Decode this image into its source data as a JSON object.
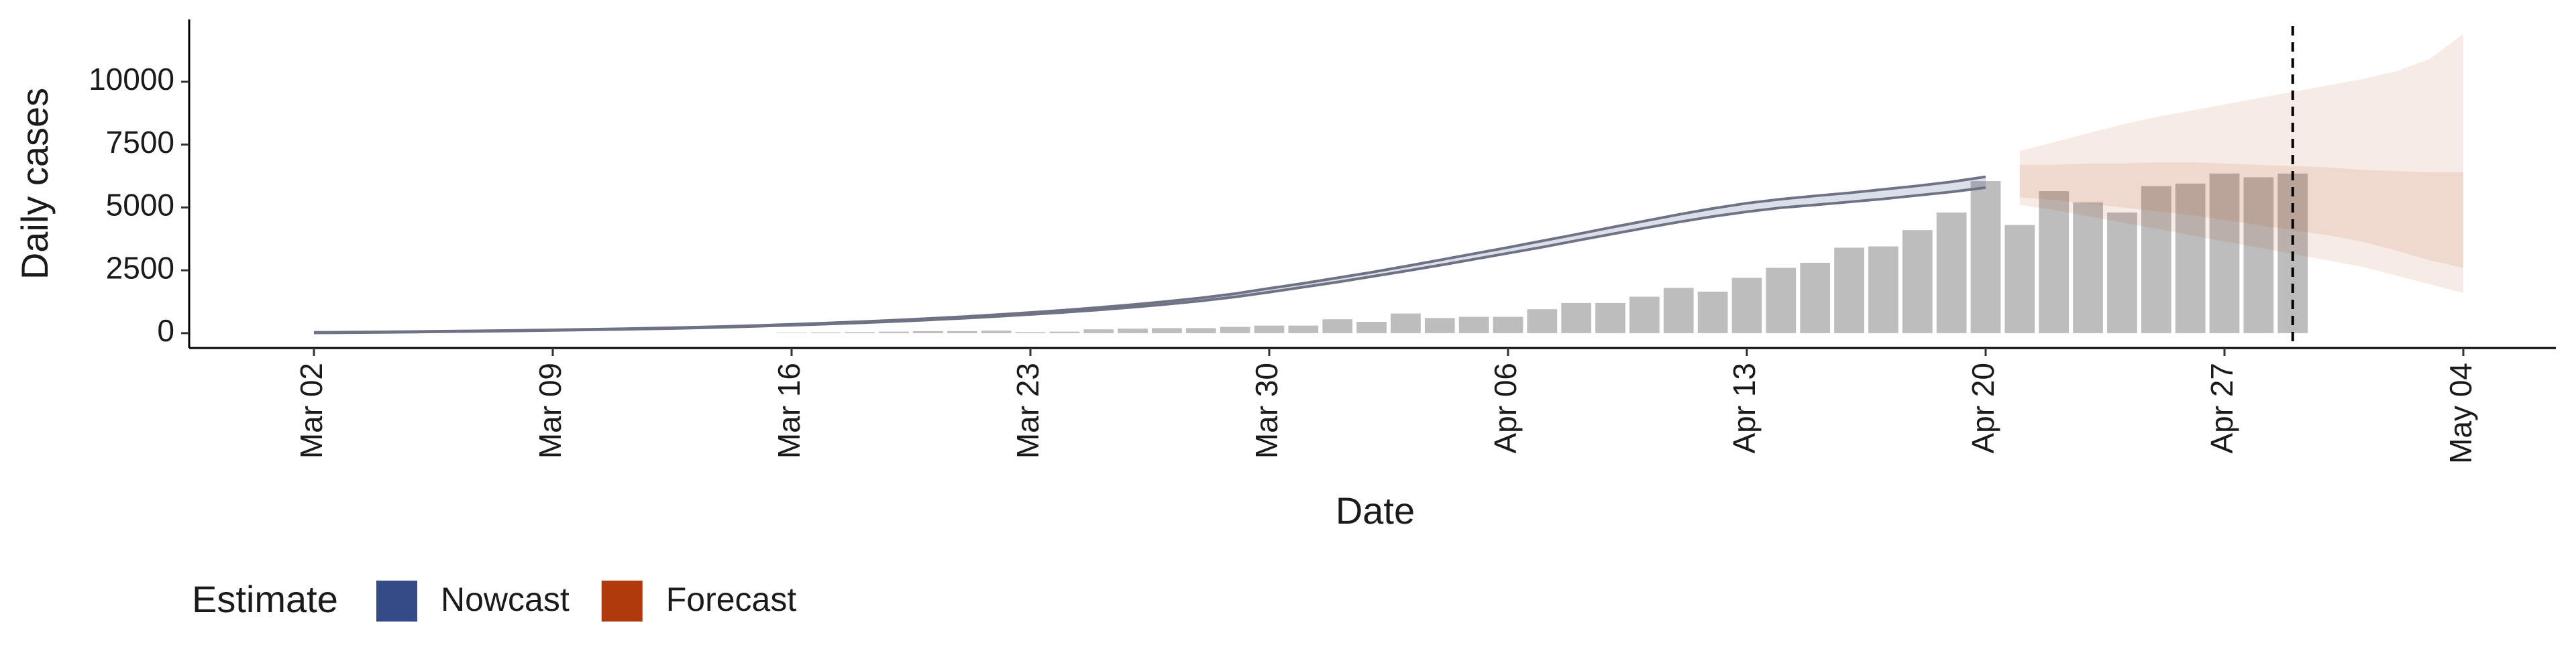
{
  "chart_data": {
    "type": "nowcast",
    "x_label": "Date",
    "y_label": "Daily cases",
    "legend_title": "Estimate",
    "categories": [
      "Mar 02",
      null,
      null,
      null,
      null,
      null,
      null,
      "Mar 09",
      null,
      null,
      null,
      null,
      null,
      null,
      "Mar 16",
      null,
      null,
      null,
      null,
      null,
      null,
      "Mar 23",
      null,
      null,
      null,
      null,
      null,
      null,
      "Mar 30",
      null,
      null,
      null,
      null,
      null,
      null,
      "Apr 06",
      null,
      null,
      null,
      null,
      null,
      null,
      "Apr 13",
      null,
      null,
      null,
      null,
      null,
      null,
      "Apr 20",
      null,
      null,
      null,
      null,
      null,
      null,
      "Apr 27",
      null,
      null,
      null,
      null,
      null,
      null,
      "May 04"
    ],
    "bars": {
      "color": "#bdbdbd",
      "values": [
        null,
        null,
        null,
        null,
        null,
        null,
        null,
        null,
        null,
        null,
        null,
        null,
        null,
        null,
        20,
        30,
        40,
        60,
        80,
        80,
        100,
        40,
        60,
        150,
        180,
        200,
        200,
        250,
        300,
        300,
        550,
        450,
        780,
        600,
        650,
        650,
        950,
        1200,
        1200,
        1450,
        1800,
        1650,
        2200,
        2600,
        2800,
        3400,
        3450,
        4100,
        4800,
        6050,
        4300,
        5650,
        5200,
        4800,
        5850,
        5950,
        6350,
        6200,
        6350,
        null,
        null,
        null,
        null,
        null
      ]
    },
    "series": [
      {
        "name": "Nowcast",
        "color": "#344b87",
        "bands": [
          {
            "lower": [
              10,
              20,
              30,
              45,
              60,
              75,
              90,
              110,
              130,
              150,
              175,
              200,
              235,
              275,
              315,
              360,
              410,
              465,
              525,
              590,
              665,
              745,
              830,
              925,
              1030,
              1150,
              1285,
              1440,
              1630,
              1830,
              2030,
              2250,
              2470,
              2700,
              2940,
              3180,
              3420,
              3680,
              3930,
              4180,
              4420,
              4640,
              4830,
              4990,
              5100,
              5220,
              5340,
              5480,
              5620,
              5790,
              null,
              null,
              null,
              null,
              null,
              null,
              null,
              null,
              null,
              null,
              null,
              null,
              null,
              null
            ],
            "upper": [
              30,
              40,
              50,
              65,
              80,
              95,
              110,
              130,
              150,
              175,
              200,
              230,
              265,
              305,
              350,
              400,
              455,
              515,
              580,
              650,
              735,
              820,
              915,
              1020,
              1135,
              1260,
              1400,
              1570,
              1780,
              1980,
              2200,
              2420,
              2660,
              2910,
              3160,
              3410,
              3670,
              3930,
              4200,
              4460,
              4720,
              4960,
              5170,
              5330,
              5460,
              5580,
              5720,
              5860,
              6020,
              6220,
              null,
              null,
              null,
              null,
              null,
              null,
              null,
              null,
              null,
              null,
              null,
              null,
              null,
              null
            ]
          }
        ]
      },
      {
        "name": "Forecast",
        "color": "#b13a0c",
        "bands": [
          {
            "lower": [
              null,
              null,
              null,
              null,
              null,
              null,
              null,
              null,
              null,
              null,
              null,
              null,
              null,
              null,
              null,
              null,
              null,
              null,
              null,
              null,
              null,
              null,
              null,
              null,
              null,
              null,
              null,
              null,
              null,
              null,
              null,
              null,
              null,
              null,
              null,
              null,
              null,
              null,
              null,
              null,
              null,
              null,
              null,
              null,
              null,
              null,
              null,
              null,
              null,
              null,
              5100,
              4900,
              4650,
              4400,
              4150,
              3900,
              3650,
              3400,
              3150,
              2900,
              2650,
              2300,
              1950,
              1600
            ],
            "upper": [
              null,
              null,
              null,
              null,
              null,
              null,
              null,
              null,
              null,
              null,
              null,
              null,
              null,
              null,
              null,
              null,
              null,
              null,
              null,
              null,
              null,
              null,
              null,
              null,
              null,
              null,
              null,
              null,
              null,
              null,
              null,
              null,
              null,
              null,
              null,
              null,
              null,
              null,
              null,
              null,
              null,
              null,
              null,
              null,
              null,
              null,
              null,
              null,
              null,
              null,
              7250,
              7600,
              7950,
              8300,
              8600,
              8850,
              9100,
              9350,
              9600,
              9850,
              10100,
              10400,
              10900,
              11900
            ]
          },
          {
            "lower": [
              null,
              null,
              null,
              null,
              null,
              null,
              null,
              null,
              null,
              null,
              null,
              null,
              null,
              null,
              null,
              null,
              null,
              null,
              null,
              null,
              null,
              null,
              null,
              null,
              null,
              null,
              null,
              null,
              null,
              null,
              null,
              null,
              null,
              null,
              null,
              null,
              null,
              null,
              null,
              null,
              null,
              null,
              null,
              null,
              null,
              null,
              null,
              null,
              null,
              null,
              5400,
              5300,
              5150,
              5000,
              4850,
              4700,
              4500,
              4300,
              4100,
              3900,
              3650,
              3300,
              2900,
              2600
            ],
            "upper": [
              null,
              null,
              null,
              null,
              null,
              null,
              null,
              null,
              null,
              null,
              null,
              null,
              null,
              null,
              null,
              null,
              null,
              null,
              null,
              null,
              null,
              null,
              null,
              null,
              null,
              null,
              null,
              null,
              null,
              null,
              null,
              null,
              null,
              null,
              null,
              null,
              null,
              null,
              null,
              null,
              null,
              null,
              null,
              null,
              null,
              null,
              null,
              null,
              null,
              null,
              6700,
              6700,
              6750,
              6750,
              6800,
              6800,
              6750,
              6700,
              6650,
              6600,
              6500,
              6450,
              6400,
              6400
            ]
          }
        ]
      }
    ],
    "ylim": [
      -590,
      12480
    ],
    "yticks": [
      0,
      2500,
      5000,
      7500,
      10000
    ],
    "grid": false
  }
}
